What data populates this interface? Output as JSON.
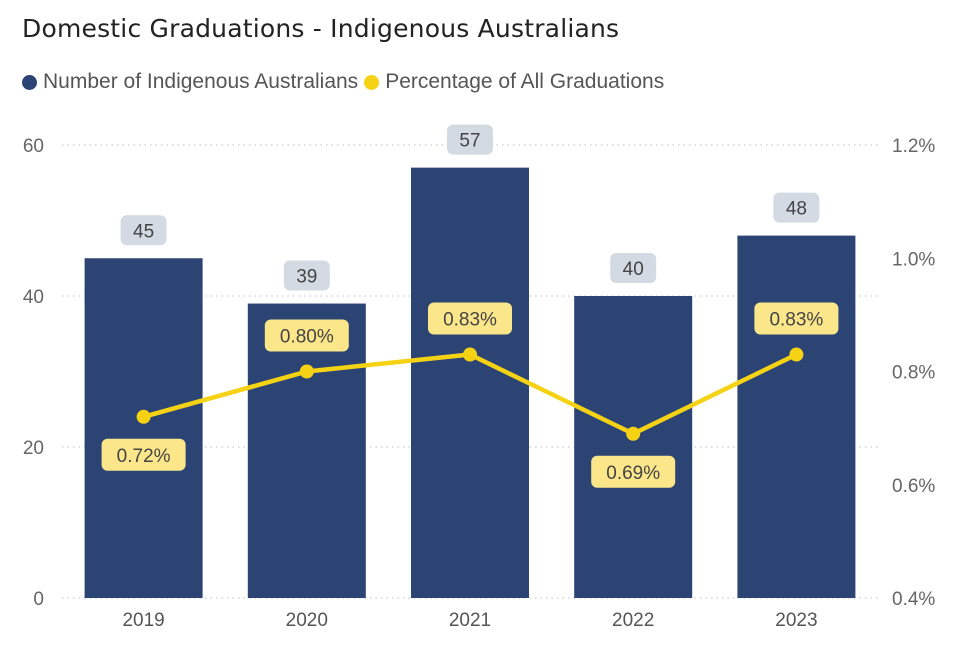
{
  "chart_data": {
    "type": "bar",
    "title": "Domestic Graduations - Indigenous Australians",
    "categories": [
      "2019",
      "2020",
      "2021",
      "2022",
      "2023"
    ],
    "series": [
      {
        "name": "Number of Indigenous Australians",
        "chart_type": "bar",
        "axis": "left",
        "color": "#2b4474",
        "values": [
          45,
          39,
          57,
          40,
          48
        ],
        "labels": [
          "45",
          "39",
          "57",
          "40",
          "48"
        ]
      },
      {
        "name": "Percentage of All Graduations",
        "chart_type": "line",
        "axis": "right",
        "color": "#f5d314",
        "values": [
          0.72,
          0.8,
          0.83,
          0.69,
          0.83
        ],
        "labels": [
          "0.72%",
          "0.80%",
          "0.83%",
          "0.69%",
          "0.83%"
        ]
      }
    ],
    "y_left": {
      "ylim": [
        0,
        60
      ],
      "ticks": [
        0,
        20,
        40,
        60
      ],
      "tick_labels": [
        "0",
        "20",
        "40",
        "60"
      ]
    },
    "y_right": {
      "ylim": [
        0.4,
        1.2
      ],
      "ticks": [
        0.4,
        0.6,
        0.8,
        1.0,
        1.2
      ],
      "tick_labels": [
        "0.4%",
        "0.6%",
        "0.8%",
        "1.0%",
        "1.2%"
      ]
    },
    "grid": true,
    "legend_position": "top-left"
  }
}
